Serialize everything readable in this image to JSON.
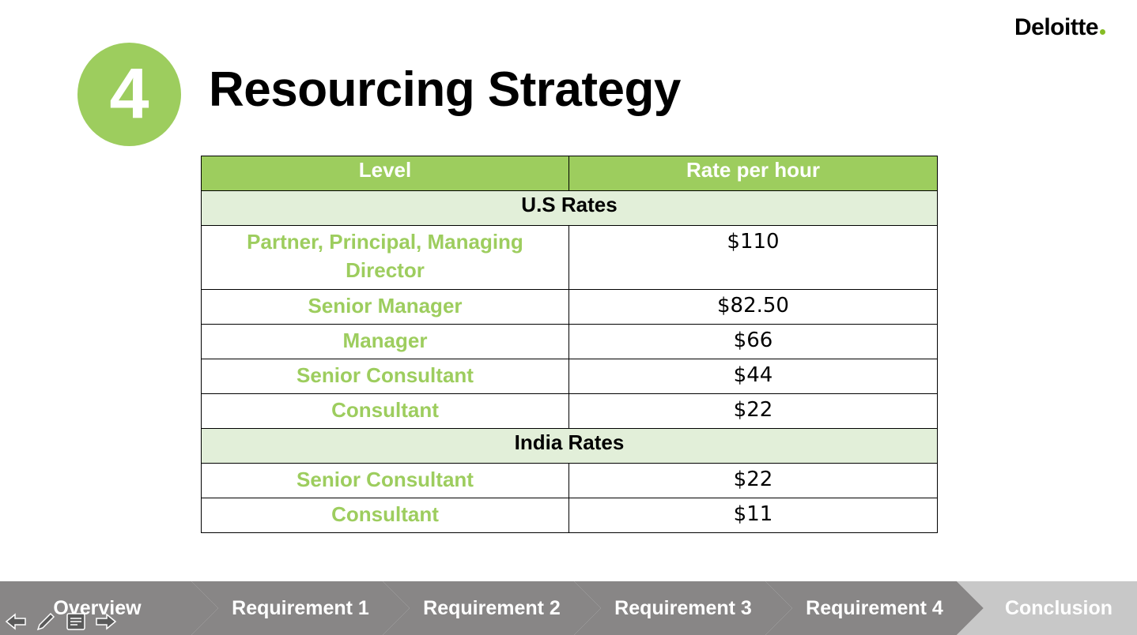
{
  "colors": {
    "accent_green": "#9dcd5e",
    "section_row_bg": "#e2efd9",
    "nav_gray": "#888686",
    "nav_last_gray": "#c8c8c8",
    "brand_dot": "#86bc25"
  },
  "brand": {
    "name": "Deloitte"
  },
  "slide": {
    "number": "4",
    "title": "Resourcing Strategy"
  },
  "table": {
    "headers": [
      "Level",
      "Rate per hour"
    ],
    "sections": [
      {
        "name": "U.S Rates",
        "rows": [
          {
            "level": "Partner, Principal, Managing Director",
            "rate": "$110"
          },
          {
            "level": "Senior Manager",
            "rate": "$82.50"
          },
          {
            "level": "Manager",
            "rate": "$66"
          },
          {
            "level": "Senior Consultant",
            "rate": "$44"
          },
          {
            "level": "Consultant",
            "rate": "$22"
          }
        ]
      },
      {
        "name": "India Rates",
        "rows": [
          {
            "level": "Senior Consultant",
            "rate": "$22"
          },
          {
            "level": "Consultant",
            "rate": "$11"
          }
        ]
      }
    ]
  },
  "nav": {
    "steps": [
      "Overview",
      "Requirement 1",
      "Requirement 2",
      "Requirement 3",
      "Requirement 4",
      "Conclusion"
    ]
  },
  "controls": [
    "back-arrow-icon",
    "pen-icon",
    "notes-icon",
    "forward-arrow-icon"
  ]
}
